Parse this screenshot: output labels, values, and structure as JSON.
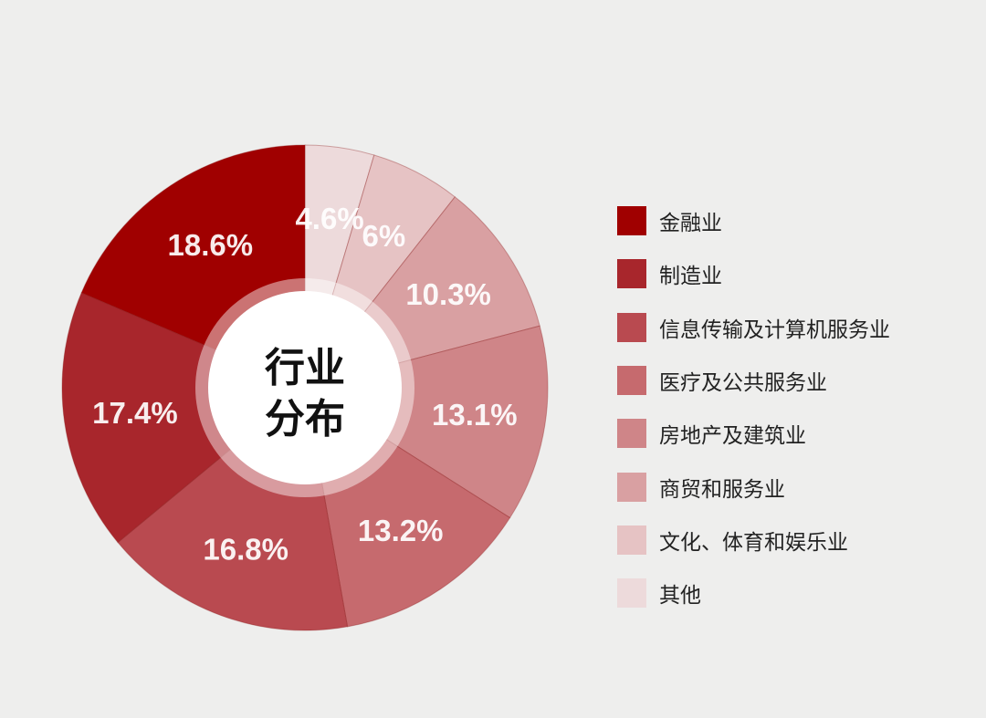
{
  "chart_data": {
    "type": "pie",
    "title": "行业分布",
    "legend_position": "right",
    "categories": [
      "金融业",
      "制造业",
      "信息传输及计算机服务业",
      "医疗及公共服务业",
      "房地产及建筑业",
      "商贸和服务业",
      "文化、体育和娱乐业",
      "其他"
    ],
    "values": [
      18.6,
      17.4,
      16.8,
      13.2,
      13.1,
      10.3,
      6,
      4.6
    ],
    "data_labels": [
      "18.6%",
      "17.4%",
      "16.8%",
      "13.2%",
      "13.1%",
      "10.3%",
      "6%",
      "4.6%"
    ],
    "colors": [
      "#a00000",
      "#a8262c",
      "#b94a50",
      "#c66a6e",
      "#cf8588",
      "#d9a0a2",
      "#e6c3c4",
      "#eddadb"
    ],
    "donut": true
  },
  "center": {
    "line1": "行业",
    "line2": "分布"
  }
}
